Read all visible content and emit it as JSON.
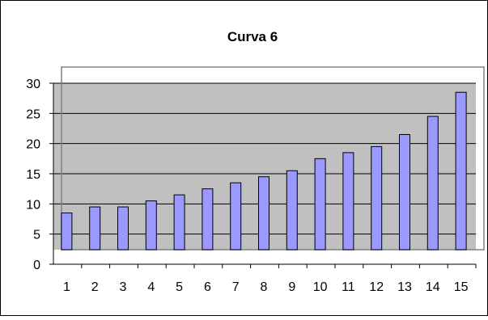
{
  "chart_data": {
    "type": "bar",
    "title": "Curva 6",
    "xlabel": "",
    "ylabel": "",
    "categories": [
      "1",
      "2",
      "3",
      "4",
      "5",
      "6",
      "7",
      "8",
      "9",
      "10",
      "11",
      "12",
      "13",
      "14",
      "15"
    ],
    "values": [
      8.5,
      9.5,
      9.5,
      10.5,
      11.5,
      12.5,
      13.5,
      14.5,
      15.5,
      17.5,
      18.5,
      19.5,
      21.5,
      24.5,
      28.5
    ],
    "ylim": [
      0,
      30
    ],
    "yticks": [
      0,
      5,
      10,
      15,
      20,
      25,
      30
    ],
    "grid": true,
    "legend": "none"
  },
  "colors": {
    "bar_fill": "#9999ff",
    "bar_stroke": "#000000",
    "plot_background": "#c0c0c0",
    "wall_border": "#808080",
    "gridline": "#000000",
    "chart_border": "#000000",
    "page_background": "#ffffff"
  }
}
